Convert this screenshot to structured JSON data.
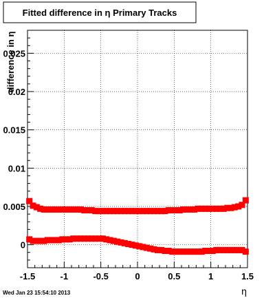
{
  "window": {
    "timestamp": "Wed Jan 23 15:54:10 2013"
  },
  "chart_data": {
    "type": "scatter",
    "title": "Fitted difference in η  Primary Tracks",
    "xlabel": "η",
    "ylabel": "difference in η",
    "xlim": [
      -1.5,
      1.5
    ],
    "ylim": [
      -0.003,
      0.028
    ],
    "grid": true,
    "x_ticks": [
      -1.5,
      -1,
      -0.5,
      0,
      0.5,
      1,
      1.5
    ],
    "x_tick_labels": [
      "-1.5",
      "-1",
      "-0.5",
      "0",
      "0.5",
      "1",
      "1.5"
    ],
    "y_ticks": [
      0,
      0.005,
      0.01,
      0.015,
      0.02,
      0.025
    ],
    "y_tick_labels": [
      "0",
      "0.005",
      "0.01",
      "0.015",
      "0.02",
      "0.025"
    ],
    "marker_color": "#ff0000",
    "line_color": "#000000",
    "x": [
      -1.475,
      -1.425,
      -1.375,
      -1.325,
      -1.275,
      -1.225,
      -1.175,
      -1.125,
      -1.075,
      -1.025,
      -0.975,
      -0.925,
      -0.875,
      -0.825,
      -0.775,
      -0.725,
      -0.675,
      -0.625,
      -0.575,
      -0.525,
      -0.475,
      -0.425,
      -0.375,
      -0.325,
      -0.275,
      -0.225,
      -0.175,
      -0.125,
      -0.075,
      -0.025,
      0.025,
      0.075,
      0.125,
      0.175,
      0.225,
      0.275,
      0.325,
      0.375,
      0.425,
      0.475,
      0.525,
      0.575,
      0.625,
      0.675,
      0.725,
      0.775,
      0.825,
      0.875,
      0.925,
      0.975,
      1.025,
      1.075,
      1.125,
      1.175,
      1.225,
      1.275,
      1.325,
      1.375,
      1.425,
      1.475
    ],
    "series": [
      {
        "values": [
          0.0057,
          0.0051,
          0.0049,
          0.0047,
          0.0046,
          0.0046,
          0.0046,
          0.0046,
          0.0046,
          0.0046,
          0.0046,
          0.0046,
          0.0046,
          0.0046,
          0.0046,
          0.0045,
          0.0045,
          0.0045,
          0.0044,
          0.0044,
          0.0044,
          0.0044,
          0.0044,
          0.0044,
          0.0044,
          0.0044,
          0.0044,
          0.0044,
          0.0044,
          0.0044,
          0.0044,
          0.0044,
          0.0044,
          0.0044,
          0.0044,
          0.0044,
          0.0044,
          0.0044,
          0.0045,
          0.0045,
          0.0045,
          0.0045,
          0.0046,
          0.0046,
          0.0046,
          0.0046,
          0.0047,
          0.0047,
          0.0047,
          0.0047,
          0.0047,
          0.0047,
          0.0047,
          0.0047,
          0.0048,
          0.0048,
          0.0049,
          0.005,
          0.0052,
          0.0058
        ]
      },
      {
        "values": [
          0.0007,
          0.0005,
          0.0005,
          0.0005,
          0.0005,
          0.0006,
          0.0006,
          0.0006,
          0.0006,
          0.0007,
          0.0007,
          0.0007,
          0.0008,
          0.0008,
          0.0008,
          0.0008,
          0.0008,
          0.0008,
          0.0008,
          0.0008,
          0.0008,
          0.0007,
          0.0006,
          0.0005,
          0.0004,
          0.0003,
          0.0002,
          0.0001,
          0.0,
          -0.0001,
          -0.0002,
          -0.0003,
          -0.0004,
          -0.0005,
          -0.0006,
          -0.0007,
          -0.0007,
          -0.0008,
          -0.0008,
          -0.0009,
          -0.0009,
          -0.0009,
          -0.0009,
          -0.0009,
          -0.0009,
          -0.0009,
          -0.0009,
          -0.0009,
          -0.0008,
          -0.0008,
          -0.0008,
          -0.0007,
          -0.0007,
          -0.0007,
          -0.0007,
          -0.0007,
          -0.0007,
          -0.0007,
          -0.0007,
          -0.0009
        ]
      }
    ]
  }
}
